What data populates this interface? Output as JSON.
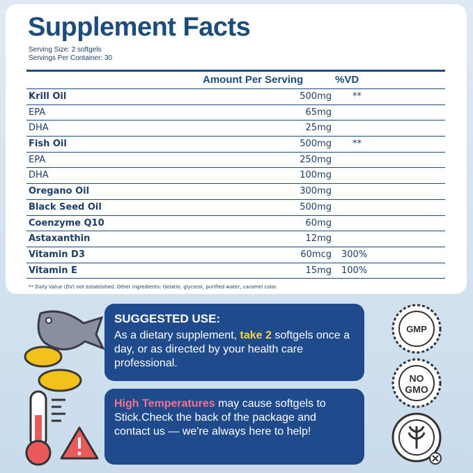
{
  "panel": {
    "title": "Supplement Facts",
    "serving_size": "Serving Size: 2 softgels",
    "servings_per_container": "Servings Per Container: 30",
    "columns": [
      "Amount Per Serving",
      "%VD"
    ],
    "rows": [
      [
        "Krill Oil",
        "500mg",
        "**"
      ],
      [
        "EPA",
        "65mg"
      ],
      [
        "DHA",
        "25mg"
      ],
      [
        "Fish Oil",
        "500mg",
        "**"
      ],
      [
        "EPA",
        "250mg"
      ],
      [
        "DHA",
        "100mg"
      ],
      [
        "Oregano Oil",
        "300mg"
      ],
      [
        "Black Seed Oil",
        "500mg"
      ],
      [
        "Coenzyme Q10",
        "60mg"
      ],
      [
        "Astaxanthin",
        "12mg"
      ],
      [
        "Vitamin D3",
        "60mcg",
        "300%"
      ],
      [
        "Vitamin E",
        "15mg",
        "100%"
      ]
    ],
    "footnote": "** Daily Value (DV) not established. Other ingredients: Gelatin, glycerol, purified water, caramel color."
  },
  "suggested_use": {
    "heading": "SUGGESTED USE:",
    "text_before": "As a dietary supplement,",
    "highlight": "take 2",
    "text_after": "softgels once a day, or as directed by your health care professional."
  },
  "warning": {
    "highlight": "High Temperatures",
    "text": "may cause softgels to Stick.Check the back of the package and contact us — we're always here to help!"
  },
  "badges": [
    "GMP",
    "NO GMO"
  ]
}
